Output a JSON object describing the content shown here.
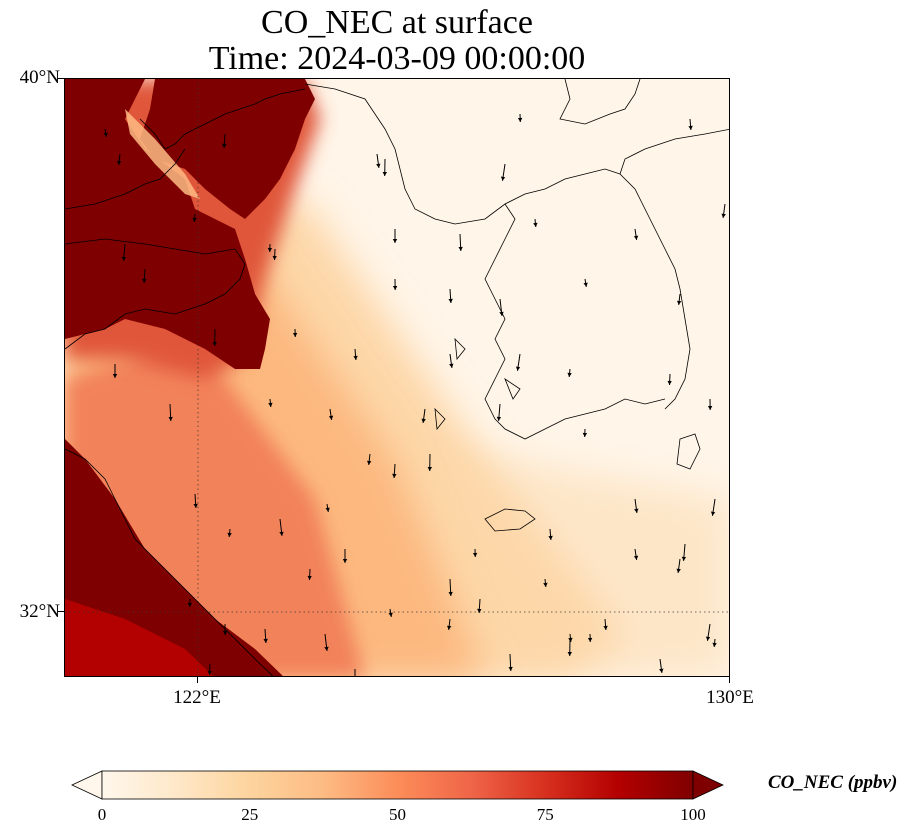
{
  "title": {
    "line1": "CO_NEC at surface",
    "line2": "Time: 2024-03-09 00:00:00"
  },
  "map": {
    "lon_range": [
      120,
      130
    ],
    "lat_range": [
      31,
      40
    ],
    "lat_ticks": [
      {
        "value": 40,
        "label": "40°N"
      },
      {
        "value": 32,
        "label": "32°N"
      }
    ],
    "lon_ticks": [
      {
        "value": 122,
        "label": "122°E"
      },
      {
        "value": 130,
        "label": "130°E"
      }
    ],
    "gridlines": true,
    "field": "CO_NEC",
    "units": "ppbv",
    "wind_vectors": true
  },
  "colorbar": {
    "title": "CO_NEC (ppbv)",
    "min": 0,
    "max": 100,
    "extend": "both",
    "ticks": [
      {
        "value": 0,
        "label": "0"
      },
      {
        "value": 25,
        "label": "25"
      },
      {
        "value": 50,
        "label": "50"
      },
      {
        "value": 75,
        "label": "75"
      },
      {
        "value": 100,
        "label": "100"
      }
    ],
    "colors": [
      "#fff7ec",
      "#fee8c8",
      "#fdd49e",
      "#fdbb84",
      "#fc8d59",
      "#ef6548",
      "#d7301f",
      "#b30000",
      "#7f0000"
    ]
  }
}
